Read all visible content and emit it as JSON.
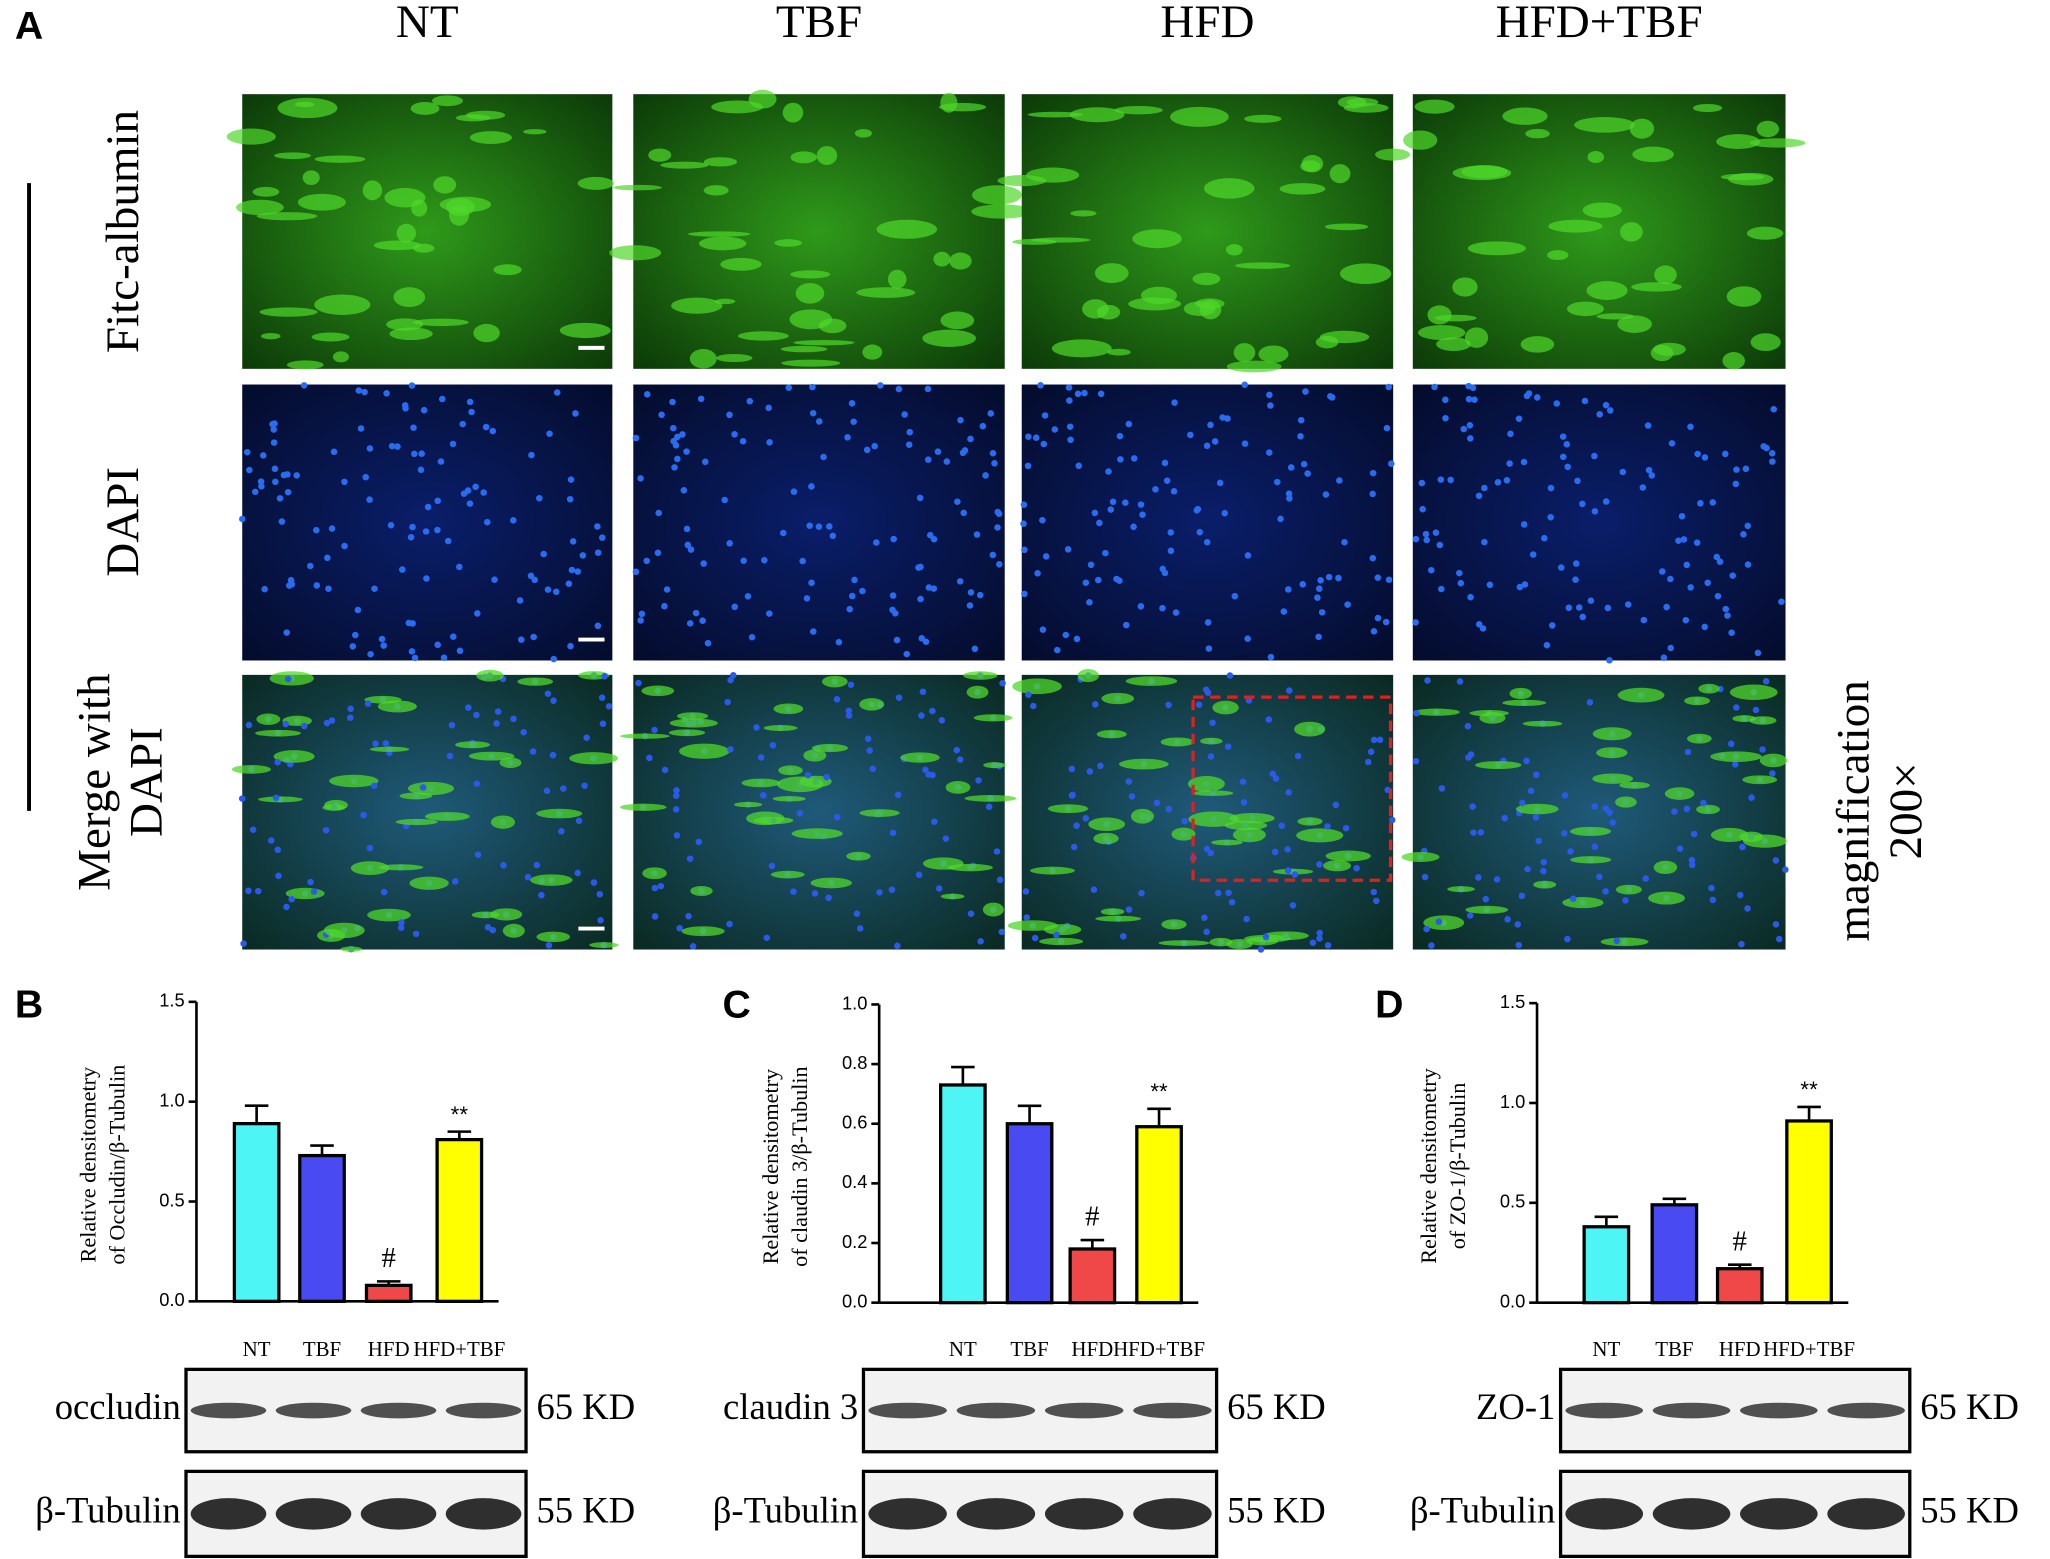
{
  "panel_a": {
    "label": "A",
    "columns": [
      "NT",
      "TBF",
      "HFD",
      "HFD+TBF"
    ],
    "rows": [
      "Fitc-albumin",
      "DAPI",
      [
        "Merge with",
        "DAPI"
      ]
    ],
    "note": [
      "magnification",
      "200×"
    ]
  },
  "chart_data": [
    {
      "type": "bar",
      "panel": "B",
      "ylabel": [
        "Relative densitometry",
        "of  Occludin/β-Tubulin"
      ],
      "categories": [
        "NT",
        "TBF",
        "HFD",
        "HFD+TBF"
      ],
      "values": [
        0.89,
        0.73,
        0.08,
        0.81
      ],
      "errors": [
        0.09,
        0.05,
        0.02,
        0.04
      ],
      "colors": [
        "#4ef5f5",
        "#4a4af2",
        "#f04848",
        "#ffff00"
      ],
      "markers": [
        null,
        null,
        "#",
        "**"
      ],
      "ylim": [
        0,
        1.5
      ],
      "yticks": [
        {
          "value": 0,
          "label": "0.0"
        },
        0.5,
        {
          "value": 1,
          "label": "1.0"
        },
        1.5
      ],
      "blots": [
        {
          "label": "occludin",
          "size": "65 KD"
        },
        {
          "label": "β-Tubulin",
          "size": "55 KD"
        }
      ]
    },
    {
      "type": "bar",
      "panel": "C",
      "ylabel": [
        "Relative densitometry",
        "of  claudin 3/β-Tubulin"
      ],
      "categories": [
        "NT",
        "TBF",
        "HFD",
        "HFD+TBF"
      ],
      "values": [
        0.73,
        0.6,
        0.18,
        0.59
      ],
      "errors": [
        0.06,
        0.06,
        0.03,
        0.06
      ],
      "colors": [
        "#4ef5f5",
        "#4a4af2",
        "#f04848",
        "#ffff00"
      ],
      "markers": [
        null,
        null,
        "#",
        "**"
      ],
      "ylim": [
        0,
        1
      ],
      "yticks": [
        {
          "value": 0,
          "label": "0.0"
        },
        0.2,
        0.4,
        0.6,
        0.8,
        {
          "value": 1,
          "label": "1.0"
        }
      ],
      "blots": [
        {
          "label": "claudin 3",
          "size": "65 KD"
        },
        {
          "label": "β-Tubulin",
          "size": "55 KD"
        }
      ]
    },
    {
      "type": "bar",
      "panel": "D",
      "ylabel": [
        "Relative densitometry",
        "of  ZO-1/β-Tubulin"
      ],
      "categories": [
        "NT",
        "TBF",
        "HFD",
        "HFD+TBF"
      ],
      "values": [
        0.38,
        0.49,
        0.17,
        0.91
      ],
      "errors": [
        0.05,
        0.03,
        0.02,
        0.07
      ],
      "colors": [
        "#4ef5f5",
        "#4a4af2",
        "#f04848",
        "#ffff00"
      ],
      "markers": [
        null,
        null,
        "#",
        "**"
      ],
      "ylim": [
        0,
        1.5
      ],
      "yticks": [
        {
          "value": 0,
          "label": "0.0"
        },
        0.5,
        {
          "value": 1,
          "label": "1.0"
        },
        1.5
      ],
      "blots": [
        {
          "label": "ZO-1",
          "size": "65 KD"
        },
        {
          "label": "β-Tubulin",
          "size": "55 KD"
        }
      ]
    }
  ]
}
